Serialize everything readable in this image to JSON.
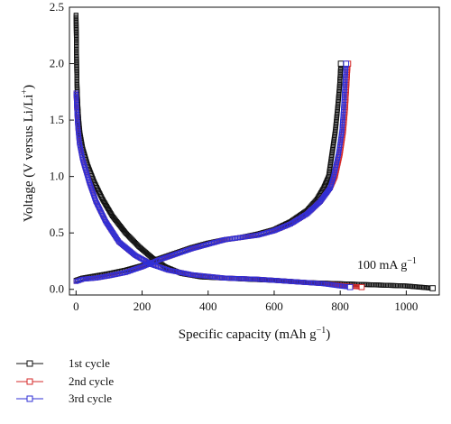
{
  "chart_data": {
    "type": "scatter",
    "xlabel_main": "Specific capacity (mAh g",
    "xlabel_sup": "−1",
    "xlabel_end": ")",
    "ylabel_main": "Voltage (V versus Li/Li",
    "ylabel_sup": "+",
    "ylabel_end": ")",
    "xlim": [
      -20,
      1100
    ],
    "ylim": [
      -0.05,
      2.5
    ],
    "xticks": [
      0,
      200,
      400,
      600,
      800,
      1000
    ],
    "yticks": [
      0.0,
      0.5,
      1.0,
      1.5,
      2.0,
      2.5
    ],
    "xtick_labels": [
      "0",
      "200",
      "400",
      "600",
      "800",
      "1000"
    ],
    "ytick_labels": [
      "0.0",
      "0.5",
      "1.0",
      "1.5",
      "2.0",
      "2.5"
    ],
    "annotation_main": "100 mA g",
    "annotation_sup": "−1",
    "legend_position": "bottom-left-outside",
    "series": [
      {
        "name": "1st cycle",
        "color": "#111111",
        "discharge": [
          [
            0,
            2.43
          ],
          [
            1,
            2.2
          ],
          [
            2,
            1.95
          ],
          [
            3,
            1.8
          ],
          [
            5,
            1.65
          ],
          [
            8,
            1.5
          ],
          [
            12,
            1.38
          ],
          [
            20,
            1.25
          ],
          [
            35,
            1.1
          ],
          [
            55,
            0.95
          ],
          [
            80,
            0.8
          ],
          [
            110,
            0.65
          ],
          [
            150,
            0.5
          ],
          [
            190,
            0.38
          ],
          [
            230,
            0.28
          ],
          [
            270,
            0.2
          ],
          [
            320,
            0.14
          ],
          [
            380,
            0.11
          ],
          [
            450,
            0.1
          ],
          [
            520,
            0.09
          ],
          [
            600,
            0.08
          ],
          [
            700,
            0.06
          ],
          [
            800,
            0.05
          ],
          [
            900,
            0.04
          ],
          [
            1000,
            0.03
          ],
          [
            1080,
            0.01
          ]
        ],
        "charge": [
          [
            0,
            0.08
          ],
          [
            20,
            0.1
          ],
          [
            60,
            0.12
          ],
          [
            100,
            0.14
          ],
          [
            150,
            0.17
          ],
          [
            200,
            0.21
          ],
          [
            250,
            0.27
          ],
          [
            300,
            0.32
          ],
          [
            350,
            0.37
          ],
          [
            400,
            0.41
          ],
          [
            450,
            0.44
          ],
          [
            500,
            0.46
          ],
          [
            550,
            0.49
          ],
          [
            600,
            0.53
          ],
          [
            650,
            0.6
          ],
          [
            700,
            0.7
          ],
          [
            730,
            0.8
          ],
          [
            750,
            0.9
          ],
          [
            765,
            1.0
          ],
          [
            775,
            1.2
          ],
          [
            785,
            1.4
          ],
          [
            792,
            1.6
          ],
          [
            798,
            1.8
          ],
          [
            802,
            2.0
          ]
        ]
      },
      {
        "name": "2nd cycle",
        "color": "#d42a2a",
        "discharge": [
          [
            0,
            1.74
          ],
          [
            2,
            1.6
          ],
          [
            5,
            1.45
          ],
          [
            10,
            1.3
          ],
          [
            20,
            1.15
          ],
          [
            40,
            0.95
          ],
          [
            60,
            0.78
          ],
          [
            90,
            0.6
          ],
          [
            130,
            0.42
          ],
          [
            180,
            0.3
          ],
          [
            230,
            0.22
          ],
          [
            280,
            0.17
          ],
          [
            350,
            0.13
          ],
          [
            450,
            0.1
          ],
          [
            550,
            0.09
          ],
          [
            650,
            0.07
          ],
          [
            750,
            0.05
          ],
          [
            820,
            0.03
          ],
          [
            865,
            0.02
          ]
        ],
        "charge": [
          [
            0,
            0.07
          ],
          [
            20,
            0.09
          ],
          [
            60,
            0.1
          ],
          [
            100,
            0.12
          ],
          [
            150,
            0.15
          ],
          [
            200,
            0.2
          ],
          [
            250,
            0.26
          ],
          [
            300,
            0.31
          ],
          [
            350,
            0.36
          ],
          [
            400,
            0.4
          ],
          [
            450,
            0.44
          ],
          [
            500,
            0.46
          ],
          [
            550,
            0.48
          ],
          [
            600,
            0.52
          ],
          [
            650,
            0.58
          ],
          [
            700,
            0.67
          ],
          [
            740,
            0.78
          ],
          [
            770,
            0.9
          ],
          [
            785,
            1.0
          ],
          [
            800,
            1.2
          ],
          [
            810,
            1.4
          ],
          [
            816,
            1.6
          ],
          [
            820,
            1.8
          ],
          [
            824,
            2.0
          ]
        ]
      },
      {
        "name": "3rd cycle",
        "color": "#2f2fd6",
        "discharge": [
          [
            0,
            1.74
          ],
          [
            2,
            1.6
          ],
          [
            5,
            1.45
          ],
          [
            10,
            1.3
          ],
          [
            20,
            1.15
          ],
          [
            40,
            0.95
          ],
          [
            60,
            0.78
          ],
          [
            90,
            0.6
          ],
          [
            130,
            0.42
          ],
          [
            180,
            0.3
          ],
          [
            230,
            0.22
          ],
          [
            280,
            0.17
          ],
          [
            350,
            0.13
          ],
          [
            450,
            0.1
          ],
          [
            550,
            0.09
          ],
          [
            650,
            0.07
          ],
          [
            750,
            0.05
          ],
          [
            800,
            0.03
          ],
          [
            830,
            0.02
          ]
        ],
        "charge": [
          [
            0,
            0.07
          ],
          [
            20,
            0.09
          ],
          [
            60,
            0.1
          ],
          [
            100,
            0.12
          ],
          [
            150,
            0.15
          ],
          [
            200,
            0.2
          ],
          [
            250,
            0.26
          ],
          [
            300,
            0.31
          ],
          [
            350,
            0.36
          ],
          [
            400,
            0.4
          ],
          [
            450,
            0.44
          ],
          [
            500,
            0.46
          ],
          [
            550,
            0.48
          ],
          [
            600,
            0.52
          ],
          [
            650,
            0.58
          ],
          [
            700,
            0.67
          ],
          [
            740,
            0.78
          ],
          [
            770,
            0.9
          ],
          [
            780,
            1.0
          ],
          [
            795,
            1.2
          ],
          [
            805,
            1.4
          ],
          [
            810,
            1.6
          ],
          [
            814,
            1.8
          ],
          [
            818,
            2.0
          ]
        ]
      }
    ]
  }
}
